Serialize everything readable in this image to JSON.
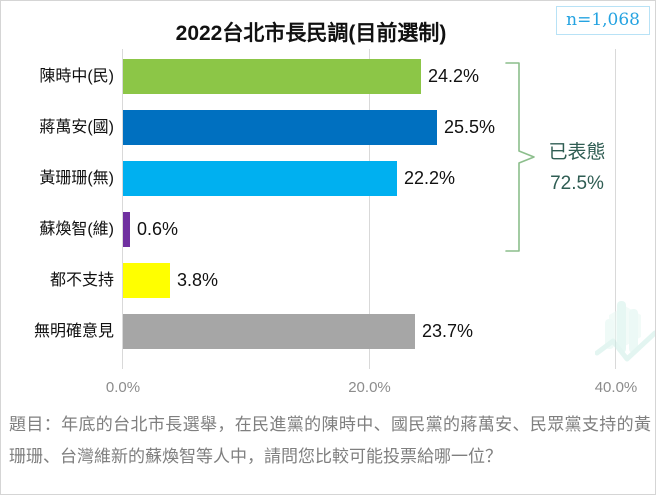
{
  "header": {
    "sample_size": "n=1,068",
    "sample_size_color": "#25a3e1",
    "sample_box_border": "#b8e2f6"
  },
  "chart_data": {
    "type": "bar",
    "orientation": "horizontal",
    "title": "2022台北市長民調(目前選制)",
    "categories": [
      "陳時中(民)",
      "蔣萬安(國)",
      "黃珊珊(無)",
      "蘇煥智(維)",
      "都不支持",
      "無明確意見"
    ],
    "values": [
      24.2,
      25.5,
      22.2,
      0.6,
      3.8,
      23.7
    ],
    "value_labels": [
      "24.2%",
      "25.5%",
      "22.2%",
      "0.6%",
      "3.8%",
      "23.7%"
    ],
    "bar_colors": [
      "#8cc647",
      "#0070c0",
      "#00b0f0",
      "#7030a0",
      "#ffff00",
      "#a6a6a6"
    ],
    "xlim": [
      0,
      40
    ],
    "x_tick_values": [
      0,
      20,
      40
    ],
    "x_tick_labels": [
      "0.0%",
      "20.0%",
      "40.0%"
    ],
    "grid": "vertical-gridlines",
    "legend": "none",
    "annotation": {
      "label": "已表態",
      "value": "72.5%",
      "text_color": "#2f5d53",
      "brace_color": "#8cbe8c",
      "covers_bars": [
        "陳時中(民)",
        "蔣萬安(國)",
        "黃珊珊(無)",
        "蘇煥智(維)"
      ]
    }
  },
  "footnote": {
    "text": "題目：年底的台北市長選舉，在民進黨的陳時中、國民黨的蔣萬安、民眾黨支持的黃珊珊、台灣維新的蘇煥智等人中，請問您比較可能投票給哪一位？"
  }
}
